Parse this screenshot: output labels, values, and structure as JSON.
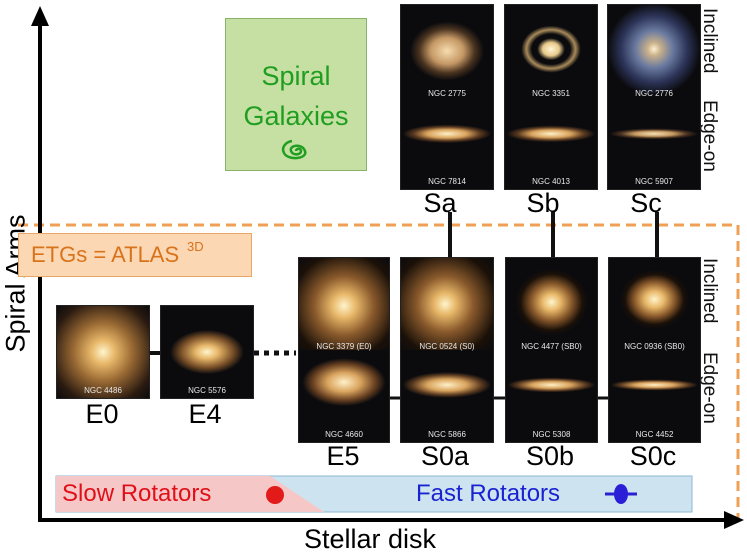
{
  "axes": {
    "y_label": "Spiral Arms",
    "x_label": "Stellar disk"
  },
  "spiral_box": {
    "line1": "Spiral",
    "line2": "Galaxies"
  },
  "etg_box": {
    "text": "ETGs = ATLAS",
    "superscript": "3D"
  },
  "side_labels": {
    "inclined": "Inclined",
    "edge_on": "Edge-on"
  },
  "spirals": [
    {
      "class": "Sa",
      "inclined_id": "NGC 2775",
      "edge_id": "NGC 7814"
    },
    {
      "class": "Sb",
      "inclined_id": "NGC 3351",
      "edge_id": "NGC 4013"
    },
    {
      "class": "Sc",
      "inclined_id": "NGC 2776",
      "edge_id": "NGC 5907"
    }
  ],
  "ellipticals": [
    {
      "class": "E0",
      "id": "NGC 4486"
    },
    {
      "class": "E4",
      "id": "NGC 5576"
    }
  ],
  "lenticulars": [
    {
      "class": "E5",
      "inclined_id": "NGC 3379 (E0)",
      "edge_id": "NGC 4660"
    },
    {
      "class": "S0a",
      "inclined_id": "NGC 0524 (S0)",
      "edge_id": "NGC 5866"
    },
    {
      "class": "S0b",
      "inclined_id": "NGC 4477 (SB0)",
      "edge_id": "NGC 5308"
    },
    {
      "class": "S0c",
      "inclined_id": "NGC 0936 (SB0)",
      "edge_id": "NGC 4452"
    }
  ],
  "rotators": {
    "slow": "Slow Rotators",
    "fast": "Fast Rotators"
  },
  "colors": {
    "spiral_box_fill": "#c6e0a4",
    "spiral_text": "#1f9e1f",
    "etg_box_fill": "#fbd7b3",
    "etg_text": "#d9731a",
    "dashed_border": "#f0a054",
    "slow_fill": "#f6c7c7",
    "slow_text": "#e0101a",
    "fast_fill": "#cde4f0",
    "fast_text": "#1a23d0",
    "slow_marker": "#e21a1a",
    "fast_marker": "#2a1fd6"
  }
}
